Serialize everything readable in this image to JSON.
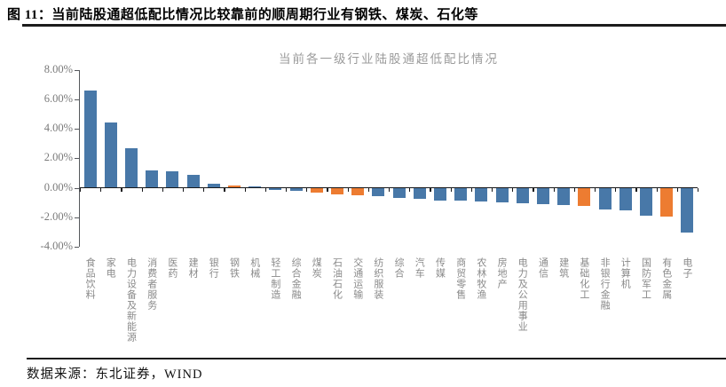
{
  "header": {
    "title": "图  11：当前陆股通超低配比情况比较靠前的顺周期行业有钢铁、煤炭、石化等"
  },
  "footer": {
    "source": "数据来源：东北证券，WIND"
  },
  "chart_data": {
    "type": "bar",
    "title": "当前各一级行业陆股通超低配比情况",
    "categories": [
      "食品饮料",
      "家电",
      "电力设备及新能源",
      "消费者服务",
      "医药",
      "建材",
      "银行",
      "钢铁",
      "机械",
      "轻工制造",
      "综合金融",
      "煤炭",
      "石油石化",
      "交通运输",
      "纺织服装",
      "综合",
      "汽车",
      "传媒",
      "商贸零售",
      "农林牧渔",
      "房地产",
      "电力及公用事业",
      "通信",
      "建筑",
      "基础化工",
      "非银行金融",
      "计算机",
      "国防军工",
      "有色金属",
      "电子"
    ],
    "values": [
      6.6,
      4.4,
      2.7,
      1.2,
      1.1,
      0.9,
      0.27,
      0.13,
      0.08,
      -0.08,
      -0.16,
      -0.3,
      -0.42,
      -0.46,
      -0.55,
      -0.62,
      -0.7,
      -0.8,
      -0.8,
      -0.87,
      -0.95,
      -1.0,
      -1.05,
      -1.12,
      -1.2,
      -1.4,
      -1.5,
      -1.87,
      -1.9,
      -3.0
    ],
    "highlight_indices": [
      7,
      11,
      12,
      13,
      24,
      28
    ],
    "yticks": [
      {
        "label": "8.00%",
        "value": 8
      },
      {
        "label": "6.00%",
        "value": 6
      },
      {
        "label": "4.00%",
        "value": 4
      },
      {
        "label": "2.00%",
        "value": 2
      },
      {
        "label": "0.00%",
        "value": 0
      },
      {
        "label": "-2.00%",
        "value": -2
      },
      {
        "label": "-4.00%",
        "value": -4
      }
    ],
    "ylim": [
      -4,
      8
    ],
    "xlabel": "",
    "ylabel": "",
    "legend": "none",
    "grid": "off",
    "colors": {
      "bar": "#4878A8",
      "highlight": "#ED7C31",
      "axis": "#55585c",
      "zero_axis": "#17181a",
      "tick_label": "#7a7a7a",
      "category_label": "#8a8a8a",
      "chart_title": "#9b9b9b"
    }
  }
}
